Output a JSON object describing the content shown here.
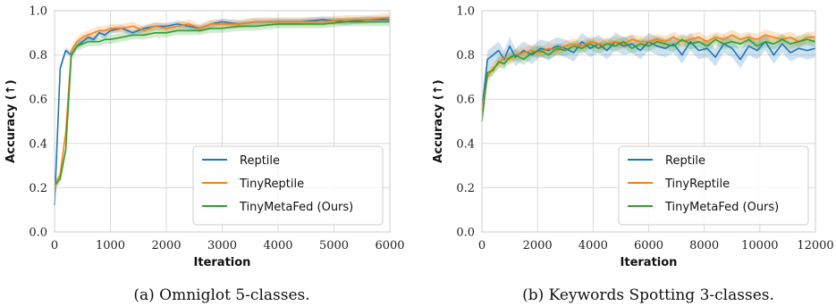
{
  "chart_data": [
    {
      "type": "line",
      "caption": "(a) Omniglot 5-classes.",
      "xlabel": "Iteration",
      "ylabel": "Accuracy (↑)",
      "xlim": [
        0,
        6000
      ],
      "ylim": [
        0.0,
        1.0
      ],
      "xticks": [
        "0",
        "1000",
        "2000",
        "3000",
        "4000",
        "5000",
        "6000"
      ],
      "xtick_values": [
        0,
        1000,
        2000,
        3000,
        4000,
        5000,
        6000
      ],
      "yticks": [
        "0.0",
        "0.2",
        "0.4",
        "0.6",
        "0.8",
        "1.0"
      ],
      "ytick_values": [
        0.0,
        0.2,
        0.4,
        0.6,
        0.8,
        1.0
      ],
      "grid": true,
      "legend_position": "lower-right",
      "series": [
        {
          "name": "Reptile",
          "color": "#1f77b4",
          "x": [
            0,
            100,
            200,
            300,
            400,
            500,
            600,
            700,
            800,
            900,
            1000,
            1200,
            1400,
            1600,
            1800,
            2000,
            2200,
            2400,
            2600,
            2800,
            3000,
            3300,
            3600,
            4000,
            4400,
            4800,
            5200,
            5600,
            6000
          ],
          "y": [
            0.12,
            0.74,
            0.82,
            0.8,
            0.84,
            0.86,
            0.88,
            0.87,
            0.9,
            0.89,
            0.91,
            0.92,
            0.9,
            0.92,
            0.93,
            0.93,
            0.94,
            0.93,
            0.92,
            0.94,
            0.95,
            0.94,
            0.95,
            0.95,
            0.95,
            0.96,
            0.95,
            0.96,
            0.96
          ],
          "band": 0.015
        },
        {
          "name": "TinyReptile",
          "color": "#ff7f0e",
          "x": [
            0,
            100,
            200,
            300,
            400,
            500,
            600,
            700,
            800,
            900,
            1000,
            1200,
            1400,
            1600,
            1800,
            2000,
            2200,
            2400,
            2600,
            2800,
            3000,
            3300,
            3600,
            4000,
            4400,
            4800,
            5200,
            5600,
            6000
          ],
          "y": [
            0.2,
            0.26,
            0.45,
            0.82,
            0.86,
            0.88,
            0.89,
            0.9,
            0.91,
            0.91,
            0.92,
            0.92,
            0.93,
            0.91,
            0.93,
            0.92,
            0.93,
            0.94,
            0.92,
            0.94,
            0.94,
            0.94,
            0.95,
            0.95,
            0.95,
            0.95,
            0.96,
            0.96,
            0.97
          ],
          "band": 0.02
        },
        {
          "name": "TinyMetaFed (Ours)",
          "color": "#2ca02c",
          "x": [
            0,
            100,
            200,
            300,
            400,
            500,
            600,
            700,
            800,
            900,
            1000,
            1200,
            1400,
            1600,
            1800,
            2000,
            2200,
            2400,
            2600,
            2800,
            3000,
            3300,
            3600,
            4000,
            4400,
            4800,
            5200,
            5600,
            6000
          ],
          "y": [
            0.21,
            0.24,
            0.37,
            0.8,
            0.84,
            0.85,
            0.86,
            0.86,
            0.86,
            0.87,
            0.87,
            0.88,
            0.89,
            0.89,
            0.9,
            0.9,
            0.91,
            0.91,
            0.91,
            0.92,
            0.92,
            0.93,
            0.93,
            0.94,
            0.94,
            0.94,
            0.95,
            0.95,
            0.95
          ],
          "band": 0.02
        }
      ]
    },
    {
      "type": "line",
      "caption": "(b) Keywords Spotting 3-classes.",
      "xlabel": "Iteration",
      "ylabel": "Accuracy (↑)",
      "xlim": [
        0,
        12000
      ],
      "ylim": [
        0.0,
        1.0
      ],
      "xticks": [
        "0",
        "2000",
        "4000",
        "6000",
        "8000",
        "10000",
        "12000"
      ],
      "xtick_values": [
        0,
        2000,
        4000,
        6000,
        8000,
        10000,
        12000
      ],
      "yticks": [
        "0.0",
        "0.2",
        "0.4",
        "0.6",
        "0.8",
        "1.0"
      ],
      "ytick_values": [
        0.0,
        0.2,
        0.4,
        0.6,
        0.8,
        1.0
      ],
      "grid": true,
      "legend_position": "lower-right",
      "series": [
        {
          "name": "Reptile",
          "color": "#1f77b4",
          "x": [
            0,
            200,
            400,
            600,
            800,
            1000,
            1200,
            1500,
            1800,
            2100,
            2400,
            2700,
            3000,
            3300,
            3600,
            3900,
            4200,
            4500,
            4800,
            5100,
            5400,
            5700,
            6000,
            6300,
            6600,
            6900,
            7200,
            7500,
            7800,
            8100,
            8400,
            8700,
            9000,
            9300,
            9600,
            9900,
            10200,
            10500,
            10800,
            11100,
            11400,
            11700,
            12000
          ],
          "y": [
            0.55,
            0.78,
            0.8,
            0.82,
            0.78,
            0.84,
            0.79,
            0.82,
            0.8,
            0.83,
            0.82,
            0.84,
            0.83,
            0.81,
            0.86,
            0.83,
            0.85,
            0.82,
            0.86,
            0.84,
            0.85,
            0.82,
            0.86,
            0.84,
            0.83,
            0.85,
            0.8,
            0.86,
            0.82,
            0.83,
            0.79,
            0.85,
            0.83,
            0.78,
            0.84,
            0.82,
            0.86,
            0.8,
            0.85,
            0.81,
            0.83,
            0.82,
            0.83
          ],
          "band": 0.04
        },
        {
          "name": "TinyReptile",
          "color": "#ff7f0e",
          "x": [
            0,
            200,
            400,
            600,
            800,
            1000,
            1200,
            1500,
            1800,
            2100,
            2400,
            2700,
            3000,
            3300,
            3600,
            3900,
            4200,
            4500,
            4800,
            5100,
            5400,
            5700,
            6000,
            6300,
            6600,
            6900,
            7200,
            7500,
            7800,
            8100,
            8400,
            8700,
            9000,
            9300,
            9600,
            9900,
            10200,
            10500,
            10800,
            11100,
            11400,
            11700,
            12000
          ],
          "y": [
            0.55,
            0.7,
            0.74,
            0.76,
            0.79,
            0.78,
            0.8,
            0.81,
            0.82,
            0.81,
            0.83,
            0.82,
            0.84,
            0.85,
            0.84,
            0.86,
            0.85,
            0.85,
            0.86,
            0.85,
            0.87,
            0.86,
            0.86,
            0.87,
            0.86,
            0.88,
            0.86,
            0.87,
            0.88,
            0.86,
            0.88,
            0.87,
            0.89,
            0.87,
            0.88,
            0.87,
            0.89,
            0.88,
            0.87,
            0.88,
            0.86,
            0.88,
            0.88
          ],
          "band": 0.025
        },
        {
          "name": "TinyMetaFed (Ours)",
          "color": "#2ca02c",
          "x": [
            0,
            200,
            400,
            600,
            800,
            1000,
            1200,
            1500,
            1800,
            2100,
            2400,
            2700,
            3000,
            3300,
            3600,
            3900,
            4200,
            4500,
            4800,
            5100,
            5400,
            5700,
            6000,
            6300,
            6600,
            6900,
            7200,
            7500,
            7800,
            8100,
            8400,
            8700,
            9000,
            9300,
            9600,
            9900,
            10200,
            10500,
            10800,
            11100,
            11400,
            11700,
            12000
          ],
          "y": [
            0.5,
            0.72,
            0.73,
            0.77,
            0.76,
            0.79,
            0.8,
            0.78,
            0.81,
            0.82,
            0.8,
            0.83,
            0.82,
            0.84,
            0.83,
            0.85,
            0.83,
            0.85,
            0.84,
            0.86,
            0.83,
            0.85,
            0.84,
            0.86,
            0.85,
            0.84,
            0.87,
            0.85,
            0.86,
            0.84,
            0.87,
            0.85,
            0.86,
            0.85,
            0.87,
            0.84,
            0.86,
            0.85,
            0.87,
            0.85,
            0.86,
            0.87,
            0.86
          ],
          "band": 0.025
        }
      ]
    }
  ]
}
